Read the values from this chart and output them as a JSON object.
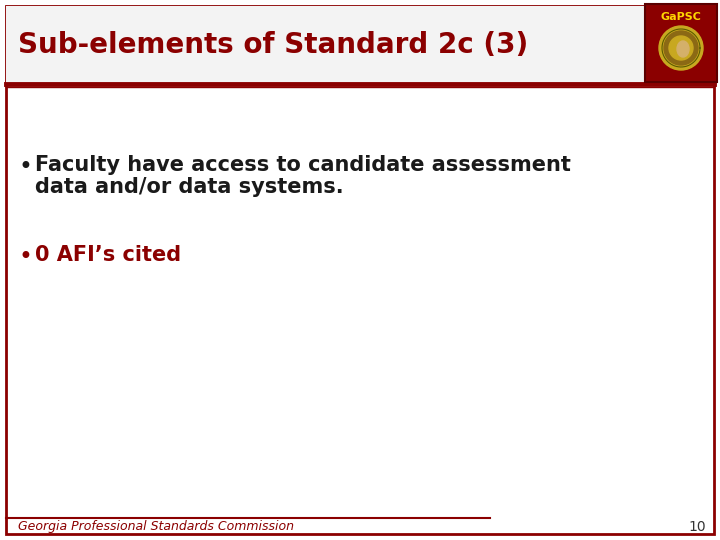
{
  "title": "Sub-elements of Standard 2c (3)",
  "title_color": "#8B0000",
  "title_fontsize": 20,
  "title_fontstyle": "bold",
  "bullet1_line1": "Faculty have access to candidate assessment",
  "bullet1_line2": "data and/or data systems.",
  "bullet1_color": "#1a1a1a",
  "bullet1_fontsize": 15,
  "bullet2": "0 AFI’s cited",
  "bullet2_color": "#8B0000",
  "bullet2_fontsize": 15,
  "footer_text": "Georgia Professional Standards Commission",
  "footer_color": "#8B0000",
  "footer_fontsize": 9,
  "page_number": "10",
  "page_number_color": "#333333",
  "page_number_fontsize": 10,
  "bg_color": "#FFFFFF",
  "border_color": "#8B0000",
  "title_bg_color": "#F2F2F2",
  "logo_bg": "#8B0000",
  "logo_gold": "#D4AF37",
  "logo_text": "GaPSC"
}
